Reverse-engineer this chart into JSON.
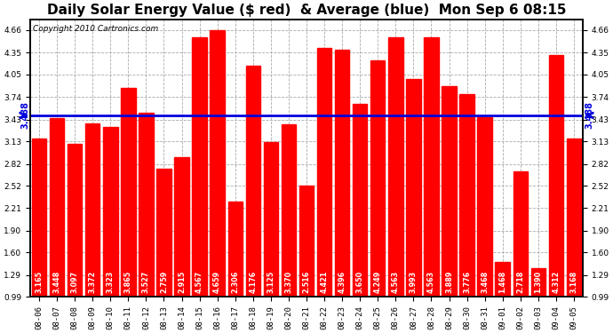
{
  "title": "Daily Solar Energy Value ($ red)  & Average (blue)  Mon Sep 6 08:15",
  "copyright": "Copyright 2010 Cartronics.com",
  "average": 3.488,
  "bar_color": "#FF0000",
  "average_line_color": "#0000DD",
  "background_color": "#FFFFFF",
  "plot_bg_color": "#FFFFFF",
  "grid_color": "#AAAAAA",
  "categories": [
    "08-06",
    "08-07",
    "08-08",
    "08-09",
    "08-10",
    "08-11",
    "08-12",
    "08-13",
    "08-14",
    "08-15",
    "08-16",
    "08-17",
    "08-18",
    "08-19",
    "08-20",
    "08-21",
    "08-22",
    "08-23",
    "08-24",
    "08-25",
    "08-26",
    "08-27",
    "08-28",
    "08-29",
    "08-30",
    "08-31",
    "09-01",
    "09-02",
    "09-03",
    "09-04",
    "09-05"
  ],
  "values": [
    3.165,
    3.448,
    3.097,
    3.372,
    3.323,
    3.865,
    3.527,
    2.759,
    2.915,
    4.567,
    4.659,
    2.306,
    4.176,
    3.125,
    3.37,
    2.516,
    4.421,
    4.396,
    3.65,
    4.249,
    4.563,
    3.993,
    4.563,
    3.889,
    3.776,
    3.468,
    1.468,
    2.718,
    1.39,
    4.312,
    3.168
  ],
  "ymin": 0.99,
  "ymax": 4.81,
  "yticks": [
    0.99,
    1.29,
    1.6,
    1.9,
    2.21,
    2.52,
    2.82,
    3.13,
    3.43,
    3.74,
    4.05,
    4.35,
    4.66
  ],
  "title_fontsize": 11,
  "tick_fontsize": 6.5,
  "label_fontsize": 5.8,
  "bar_bottom": 0.99
}
